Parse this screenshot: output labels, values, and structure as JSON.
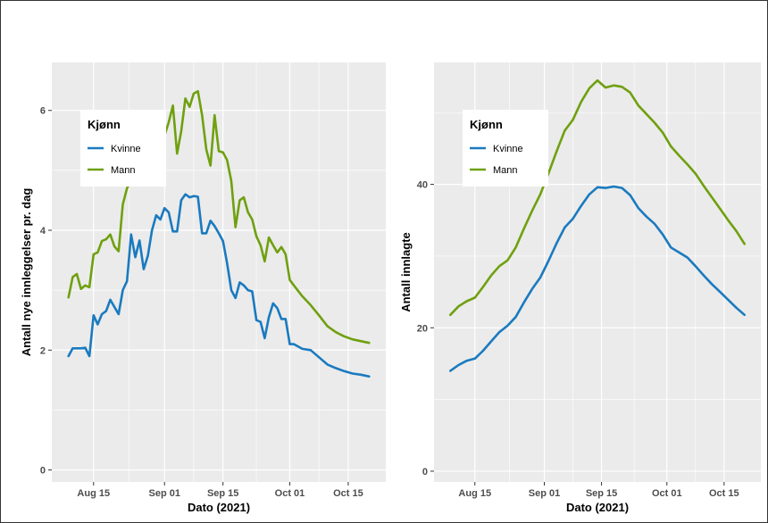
{
  "colors": {
    "kvinne": "#1a7abf",
    "mann": "#6fa00f",
    "panel": "#ebebeb",
    "grid": "#ffffff"
  },
  "chart_data": [
    {
      "type": "line",
      "ylabel": "Antall nye innleggelser pr. dag",
      "xlabel": "Dato (2021)",
      "ylim": [
        -0.2,
        6.8
      ],
      "yticks": [
        0,
        2,
        4,
        6
      ],
      "xlim": [
        "2021-08-05",
        "2021-10-24"
      ],
      "xticks": [
        {
          "date": "2021-08-15",
          "label": "Aug 15"
        },
        {
          "date": "2021-09-01",
          "label": "Sep 01"
        },
        {
          "date": "2021-09-15",
          "label": "Sep 15"
        },
        {
          "date": "2021-10-01",
          "label": "Oct 01"
        },
        {
          "date": "2021-10-15",
          "label": "Oct 15"
        }
      ],
      "grid": true,
      "legend": {
        "title": "Kjønn",
        "placement": "top-left"
      },
      "series": [
        {
          "name": "Kvinne",
          "x": [
            "2021-08-09",
            "2021-08-10",
            "2021-08-11",
            "2021-08-12",
            "2021-08-13",
            "2021-08-14",
            "2021-08-15",
            "2021-08-16",
            "2021-08-17",
            "2021-08-18",
            "2021-08-19",
            "2021-08-20",
            "2021-08-21",
            "2021-08-22",
            "2021-08-23",
            "2021-08-24",
            "2021-08-25",
            "2021-08-26",
            "2021-08-27",
            "2021-08-28",
            "2021-08-29",
            "2021-08-30",
            "2021-08-31",
            "2021-09-01",
            "2021-09-02",
            "2021-09-03",
            "2021-09-04",
            "2021-09-05",
            "2021-09-06",
            "2021-09-07",
            "2021-09-08",
            "2021-09-09",
            "2021-09-10",
            "2021-09-11",
            "2021-09-12",
            "2021-09-13",
            "2021-09-14",
            "2021-09-15",
            "2021-09-16",
            "2021-09-17",
            "2021-09-18",
            "2021-09-19",
            "2021-09-20",
            "2021-09-21",
            "2021-09-22",
            "2021-09-23",
            "2021-09-24",
            "2021-09-25",
            "2021-09-26",
            "2021-09-27",
            "2021-09-28",
            "2021-09-29",
            "2021-09-30",
            "2021-10-01",
            "2021-10-02",
            "2021-10-04",
            "2021-10-06",
            "2021-10-08",
            "2021-10-10",
            "2021-10-12",
            "2021-10-14",
            "2021-10-16",
            "2021-10-18",
            "2021-10-20"
          ],
          "y": [
            1.9,
            2.03,
            2.03,
            2.03,
            2.04,
            1.9,
            2.58,
            2.43,
            2.6,
            2.65,
            2.84,
            2.72,
            2.6,
            3.0,
            3.15,
            3.93,
            3.55,
            3.83,
            3.35,
            3.57,
            4.0,
            4.25,
            4.18,
            4.37,
            4.3,
            3.98,
            3.98,
            4.5,
            4.6,
            4.55,
            4.57,
            4.56,
            3.95,
            3.95,
            4.16,
            4.07,
            3.95,
            3.82,
            3.45,
            3.0,
            2.87,
            3.13,
            3.08,
            3.0,
            2.98,
            2.5,
            2.47,
            2.2,
            2.55,
            2.78,
            2.7,
            2.52,
            2.52,
            2.1,
            2.1,
            2.02,
            2.0,
            1.88,
            1.76,
            1.7,
            1.65,
            1.61,
            1.59,
            1.56
          ]
        },
        {
          "name": "Mann",
          "x": [
            "2021-08-09",
            "2021-08-10",
            "2021-08-11",
            "2021-08-12",
            "2021-08-13",
            "2021-08-14",
            "2021-08-15",
            "2021-08-16",
            "2021-08-17",
            "2021-08-18",
            "2021-08-19",
            "2021-08-20",
            "2021-08-21",
            "2021-08-22",
            "2021-08-23",
            "2021-08-24",
            "2021-09-01",
            "2021-09-02",
            "2021-09-03",
            "2021-09-04",
            "2021-09-05",
            "2021-09-06",
            "2021-09-07",
            "2021-09-08",
            "2021-09-09",
            "2021-09-10",
            "2021-09-11",
            "2021-09-12",
            "2021-09-13",
            "2021-09-14",
            "2021-09-15",
            "2021-09-16",
            "2021-09-17",
            "2021-09-18",
            "2021-09-19",
            "2021-09-20",
            "2021-09-21",
            "2021-09-22",
            "2021-09-23",
            "2021-09-24",
            "2021-09-25",
            "2021-09-26",
            "2021-09-27",
            "2021-09-28",
            "2021-09-29",
            "2021-09-30",
            "2021-10-01",
            "2021-10-02",
            "2021-10-04",
            "2021-10-06",
            "2021-10-08",
            "2021-10-10",
            "2021-10-12",
            "2021-10-14",
            "2021-10-16",
            "2021-10-18",
            "2021-10-20"
          ],
          "y": [
            2.88,
            3.22,
            3.27,
            3.02,
            3.08,
            3.05,
            3.6,
            3.63,
            3.82,
            3.85,
            3.93,
            3.73,
            3.65,
            4.43,
            4.7,
            4.82,
            5.58,
            5.8,
            6.08,
            5.28,
            5.65,
            6.2,
            6.06,
            6.28,
            6.32,
            5.92,
            5.35,
            5.08,
            5.92,
            5.32,
            5.3,
            5.17,
            4.82,
            4.05,
            4.5,
            4.55,
            4.3,
            4.18,
            3.9,
            3.75,
            3.48,
            3.88,
            3.75,
            3.63,
            3.72,
            3.6,
            3.17,
            3.08,
            2.9,
            2.75,
            2.58,
            2.4,
            2.3,
            2.23,
            2.18,
            2.15,
            2.12
          ]
        }
      ]
    },
    {
      "type": "line",
      "ylabel": "Antall innlagte",
      "xlabel": "Dato (2021)",
      "ylim": [
        -1.5,
        57
      ],
      "yticks": [
        0,
        20,
        40
      ],
      "xlim": [
        "2021-08-05",
        "2021-10-24"
      ],
      "xticks": [
        {
          "date": "2021-08-15",
          "label": "Aug 15"
        },
        {
          "date": "2021-09-01",
          "label": "Sep 01"
        },
        {
          "date": "2021-09-15",
          "label": "Sep 15"
        },
        {
          "date": "2021-10-01",
          "label": "Oct 01"
        },
        {
          "date": "2021-10-15",
          "label": "Oct 15"
        }
      ],
      "grid": true,
      "legend": {
        "title": "Kjønn",
        "placement": "top-left"
      },
      "series": [
        {
          "name": "Kvinne",
          "x": [
            "2021-08-09",
            "2021-08-11",
            "2021-08-13",
            "2021-08-15",
            "2021-08-17",
            "2021-08-19",
            "2021-08-21",
            "2021-08-23",
            "2021-08-25",
            "2021-08-27",
            "2021-08-29",
            "2021-08-31",
            "2021-09-02",
            "2021-09-04",
            "2021-09-06",
            "2021-09-08",
            "2021-09-10",
            "2021-09-12",
            "2021-09-14",
            "2021-09-16",
            "2021-09-18",
            "2021-09-20",
            "2021-09-22",
            "2021-09-24",
            "2021-09-26",
            "2021-09-28",
            "2021-09-30",
            "2021-10-02",
            "2021-10-04",
            "2021-10-06",
            "2021-10-08",
            "2021-10-10",
            "2021-10-12",
            "2021-10-14",
            "2021-10-16",
            "2021-10-18",
            "2021-10-20"
          ],
          "y": [
            14.0,
            14.8,
            15.4,
            15.7,
            16.8,
            18.1,
            19.4,
            20.3,
            21.5,
            23.5,
            25.4,
            27.0,
            29.3,
            31.8,
            34.0,
            35.2,
            37.0,
            38.6,
            39.6,
            39.5,
            39.7,
            39.5,
            38.5,
            36.7,
            35.5,
            34.5,
            33.0,
            31.2,
            30.5,
            29.8,
            28.6,
            27.3,
            26.1,
            25.0,
            23.9,
            22.8,
            21.8
          ]
        },
        {
          "name": "Mann",
          "x": [
            "2021-08-09",
            "2021-08-11",
            "2021-08-13",
            "2021-08-15",
            "2021-08-17",
            "2021-08-19",
            "2021-08-21",
            "2021-08-23",
            "2021-08-25",
            "2021-08-27",
            "2021-08-29",
            "2021-08-31",
            "2021-09-02",
            "2021-09-04",
            "2021-09-06",
            "2021-09-08",
            "2021-09-10",
            "2021-09-12",
            "2021-09-14",
            "2021-09-16",
            "2021-09-18",
            "2021-09-20",
            "2021-09-22",
            "2021-09-24",
            "2021-09-26",
            "2021-09-28",
            "2021-09-30",
            "2021-10-02",
            "2021-10-04",
            "2021-10-06",
            "2021-10-08",
            "2021-10-10",
            "2021-10-12",
            "2021-10-14",
            "2021-10-16",
            "2021-10-18",
            "2021-10-20"
          ],
          "y": [
            21.8,
            23.0,
            23.7,
            24.2,
            25.7,
            27.3,
            28.6,
            29.4,
            31.2,
            33.8,
            36.3,
            38.6,
            41.5,
            44.6,
            47.5,
            49.0,
            51.5,
            53.4,
            54.5,
            53.5,
            53.8,
            53.6,
            52.8,
            51.0,
            49.8,
            48.6,
            47.2,
            45.3,
            44.0,
            42.8,
            41.5,
            39.8,
            38.2,
            36.6,
            35.0,
            33.5,
            31.7
          ]
        }
      ]
    }
  ]
}
